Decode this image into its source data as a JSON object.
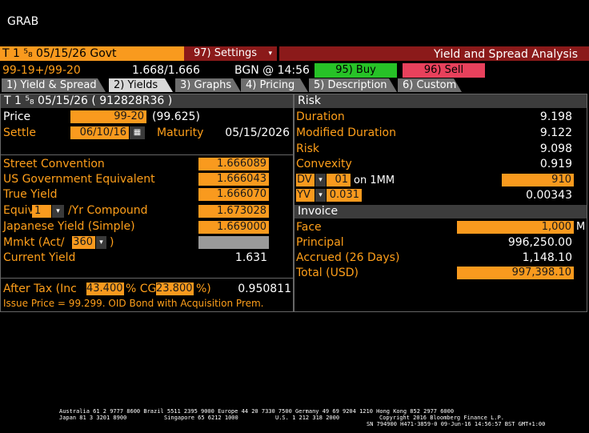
{
  "window": {
    "title": "GRAB"
  },
  "security_bar": {
    "security": "T 1 ⁵₈ 05/15/26 Govt",
    "settings_label": "97) Settings",
    "analysis_title": "Yield and Spread Analysis"
  },
  "quote_bar": {
    "bid_ask": "99-19+/99-20",
    "yields": "1.668/1.666",
    "source": "BGN @ 14:56",
    "buy_label": "95) Buy",
    "sell_label": "96) Sell"
  },
  "tabs": [
    {
      "label": "1) Yield & Spread"
    },
    {
      "label": "2) Yields"
    },
    {
      "label": "3) Graphs"
    },
    {
      "label": "4) Pricing"
    },
    {
      "label": "5) Description"
    },
    {
      "label": "6) Custom"
    }
  ],
  "left": {
    "header": "T 1 ⁵₈ 05/15/26 ( 912828R36 )",
    "price_label": "Price",
    "price_value": "99-20",
    "price_decimal": "(99.625)",
    "settle_label": "Settle",
    "settle_value": "06/10/16",
    "maturity_label": "Maturity",
    "maturity_value": "05/15/2026",
    "yields": [
      {
        "label": "Street Convention",
        "value": "1.666089"
      },
      {
        "label": "US Government Equivalent",
        "value": "1.666043"
      },
      {
        "label": "True Yield",
        "value": "1.666070"
      },
      {
        "label": "/Yr Compound",
        "value": "1.673028"
      },
      {
        "label": "Japanese Yield (Simple)",
        "value": "1.669000"
      }
    ],
    "equiv_label": "Equiv",
    "equiv_value": "1",
    "mmkt_label": "Mmkt (Act/",
    "mmkt_value": "360",
    "mmkt_close": ")",
    "current_yield_label": "Current Yield",
    "current_yield_value": "1.631",
    "after_tax_label": "After Tax (Inc",
    "after_tax_inc": "43.400",
    "after_tax_cg_label": "% CG",
    "after_tax_cg": "23.800",
    "after_tax_close": "%)",
    "after_tax_value": "0.950811",
    "issue_note": "Issue Price = 99.299. OID Bond with Acquisition Prem."
  },
  "risk": {
    "header": "Risk",
    "rows": [
      {
        "label": "Duration",
        "value": "9.198"
      },
      {
        "label": "Modified Duration",
        "value": "9.122"
      },
      {
        "label": "Risk",
        "value": "9.098"
      },
      {
        "label": "Convexity",
        "value": "0.919"
      }
    ],
    "dv_label": "DV",
    "dv_amount": "01",
    "dv_on": "on 1MM",
    "dv_value": "910",
    "yv_label": "YV",
    "yv_amount": "0.031",
    "yv_value": "0.00343"
  },
  "invoice": {
    "header": "Invoice",
    "face_label": "Face",
    "face_value": "1,000",
    "face_unit": "M",
    "principal_label": "Principal",
    "principal_value": "996,250.00",
    "accrued_label": "Accrued (26 Days)",
    "accrued_value": "1,148.10",
    "total_label": "Total (USD)",
    "total_value": "997,398.10"
  },
  "footer": {
    "line1": "Australia 61 2 9777 8600 Brazil 5511 2395 9000 Europe 44 20 7330 7500 Germany 49 69 9204 1210 Hong Kong 852 2977 6000",
    "line2a": "Japan 81 3 3201 8900",
    "line2b": "Singapore 65 6212 1000",
    "line2c": "U.S. 1 212 318 2000",
    "line2d": "Copyright 2016 Bloomberg Finance L.P.",
    "line3": "SN 794900 H471-3859-0 09-Jun-16 14:56:57 BST  GMT+1:00"
  }
}
